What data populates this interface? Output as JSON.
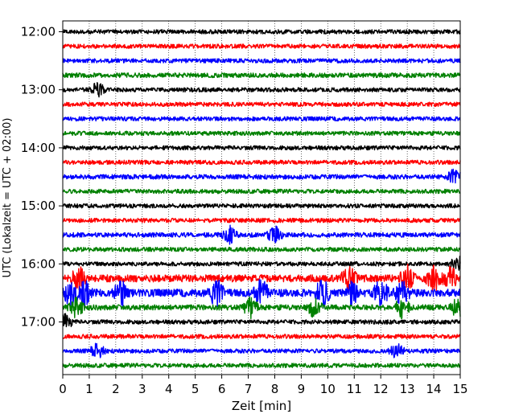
{
  "chart_data": {
    "type": "line",
    "title": "",
    "xlabel": "Zeit  [min]",
    "ylabel": "UTC (Lokalzeit = UTC + 02:00)",
    "xlim": [
      0,
      15
    ],
    "x_ticks": [
      "0",
      "1",
      "2",
      "3",
      "4",
      "5",
      "6",
      "7",
      "8",
      "9",
      "10",
      "11",
      "12",
      "13",
      "14",
      "15"
    ],
    "y_ticks": [
      "12:00",
      "13:00",
      "14:00",
      "15:00",
      "16:00",
      "17:00"
    ],
    "grid": "vertical dotted",
    "trace_interval_min": 15,
    "trace_colors": [
      "#000000",
      "#ff0000",
      "#0000ff",
      "#008000"
    ],
    "traces": [
      {
        "start": "12:00",
        "amp": 1.0,
        "events": []
      },
      {
        "start": "12:15",
        "amp": 1.0,
        "events": []
      },
      {
        "start": "12:30",
        "amp": 1.0,
        "events": []
      },
      {
        "start": "12:45",
        "amp": 1.1,
        "events": []
      },
      {
        "start": "13:00",
        "amp": 1.0,
        "events": [
          1.3
        ]
      },
      {
        "start": "13:15",
        "amp": 1.0,
        "events": []
      },
      {
        "start": "13:30",
        "amp": 1.0,
        "events": []
      },
      {
        "start": "13:45",
        "amp": 1.0,
        "events": []
      },
      {
        "start": "14:00",
        "amp": 1.0,
        "events": []
      },
      {
        "start": "14:15",
        "amp": 1.0,
        "events": []
      },
      {
        "start": "14:30",
        "amp": 1.1,
        "events": [
          14.8
        ]
      },
      {
        "start": "14:45",
        "amp": 1.0,
        "events": []
      },
      {
        "start": "15:00",
        "amp": 1.0,
        "events": []
      },
      {
        "start": "15:15",
        "amp": 1.0,
        "events": []
      },
      {
        "start": "15:30",
        "amp": 1.1,
        "events": [
          6.3,
          8.0
        ]
      },
      {
        "start": "15:45",
        "amp": 1.0,
        "events": []
      },
      {
        "start": "16:00",
        "amp": 1.0,
        "events": [
          14.9
        ]
      },
      {
        "start": "16:15",
        "amp": 1.7,
        "events": [
          0.6,
          10.8,
          13.0,
          14.0,
          14.6
        ]
      },
      {
        "start": "16:30",
        "amp": 1.8,
        "events": [
          0.3,
          0.8,
          2.2,
          5.8,
          7.5,
          9.8,
          10.9,
          12.0,
          12.8
        ]
      },
      {
        "start": "16:45",
        "amp": 1.3,
        "events": [
          0.5,
          7.1,
          9.5,
          12.8,
          14.9
        ]
      },
      {
        "start": "17:00",
        "amp": 1.0,
        "events": [
          0.1
        ]
      },
      {
        "start": "17:15",
        "amp": 1.0,
        "events": []
      },
      {
        "start": "17:30",
        "amp": 1.0,
        "events": [
          1.3,
          12.6
        ]
      },
      {
        "start": "17:45",
        "amp": 1.0,
        "events": []
      }
    ]
  }
}
